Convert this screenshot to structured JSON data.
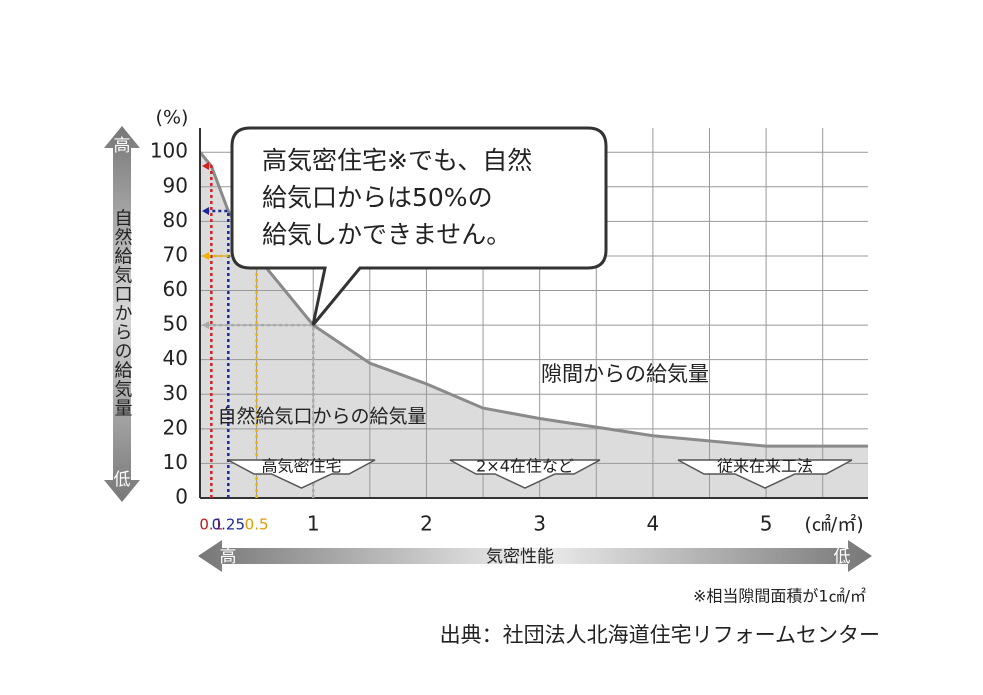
{
  "chart_data": {
    "type": "area",
    "y_unit": "(%)",
    "x_unit": "(㎠/㎡)",
    "y_axis_label": "自然給気口からの給気量",
    "y_axis_high": "高",
    "y_axis_low": "低",
    "x_axis_label": "気密性能",
    "x_axis_high": "高",
    "x_axis_low": "低",
    "callout": [
      "高気密住宅※でも、自然",
      "給気口からは50%の",
      "給気しかできません。"
    ],
    "area_labels": [
      "隙間からの給気量",
      "自然給気口からの給気量"
    ],
    "house_types": [
      "高気密住宅",
      "2×4在住など",
      "従来在来工法"
    ],
    "footnote": "※相当隙間面積が1㎠/㎡",
    "source": "出典：社団法人北海道住宅リフォームセンター",
    "series": [
      {
        "color": "#8a8a8a",
        "fill": "#dcdcdc",
        "x": [
          0,
          0.1,
          0.25,
          0.5,
          1,
          1.5,
          2,
          2.5,
          3,
          4,
          5,
          5.9
        ],
        "values": [
          100,
          96,
          83,
          70,
          50,
          39,
          33,
          26,
          23,
          18,
          15,
          15
        ]
      }
    ],
    "reference_lines": [
      {
        "x": 0.1,
        "y": 96,
        "color": "#d42020"
      },
      {
        "x": 0.25,
        "y": 83,
        "color": "#1a2a9a"
      },
      {
        "x": 0.5,
        "y": 70,
        "color": "#f0b400"
      },
      {
        "x": 1,
        "y": 50,
        "color": "#aaaaaa"
      }
    ],
    "xlim": [
      0,
      5.9
    ],
    "ylim": [
      0,
      107
    ],
    "xticks": [
      0.1,
      0.25,
      0.5,
      1,
      2,
      3,
      4,
      5
    ],
    "xtick_colors": [
      "#c01818",
      "#1a2a9a",
      "#e09a00",
      "#222222",
      "#222222",
      "#222222",
      "#222222",
      "#222222"
    ],
    "xgrid_step": 0.5,
    "yticks": [
      0,
      10,
      20,
      30,
      40,
      50,
      60,
      70,
      80,
      90,
      100
    ],
    "grid": true
  }
}
